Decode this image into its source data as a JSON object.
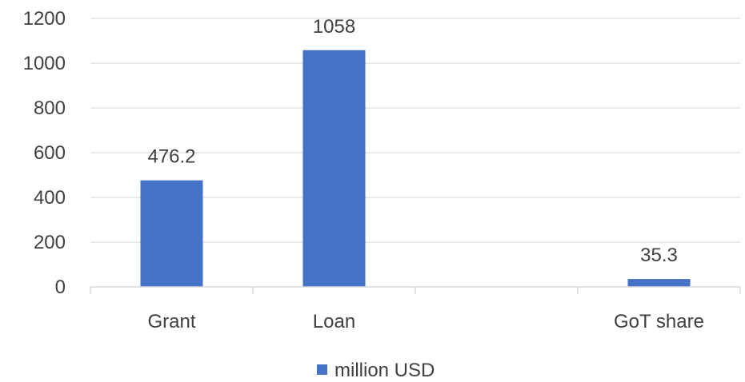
{
  "chart_data": {
    "type": "bar",
    "categories": [
      "Grant",
      "Loan",
      "",
      "GoT share"
    ],
    "series": [
      {
        "name": "million USD",
        "values": [
          476.2,
          1058,
          null,
          35.3
        ],
        "color": "#4472C4"
      }
    ],
    "data_labels": [
      "476.2",
      "1058",
      "",
      "35.3"
    ],
    "y_ticks": [
      "0",
      "200",
      "400",
      "600",
      "800",
      "1000",
      "1200"
    ],
    "ylim": [
      0,
      1200
    ],
    "grid": true,
    "legend_position": "bottom",
    "title": "",
    "xlabel": "",
    "ylabel": ""
  }
}
